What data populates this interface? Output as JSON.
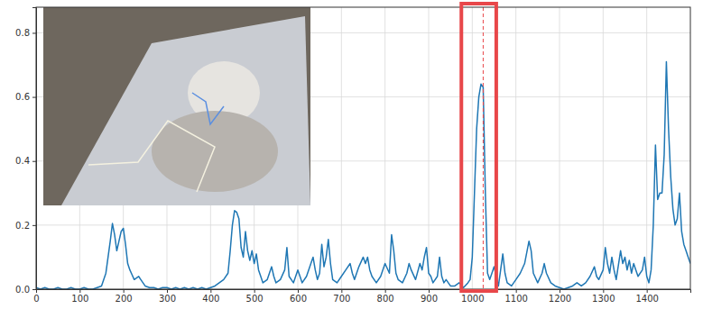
{
  "chart_data": {
    "type": "line",
    "color": "#1f77b4",
    "grid": true,
    "xlim": [
      0,
      1500
    ],
    "xticks": [
      0,
      100,
      200,
      300,
      400,
      500,
      600,
      700,
      800,
      900,
      1000,
      1100,
      1200,
      1300,
      1400
    ],
    "ylim": [
      0,
      0.88
    ],
    "yticks": [
      {
        "value": 0,
        "label": "0.0"
      },
      0.2,
      0.4,
      0.6,
      0.8
    ],
    "highlight_span": [
      975,
      1055
    ],
    "peak_x": 1025,
    "x": [
      0,
      10,
      20,
      30,
      40,
      50,
      60,
      70,
      80,
      90,
      100,
      110,
      120,
      130,
      140,
      150,
      160,
      170,
      175,
      180,
      185,
      190,
      195,
      200,
      205,
      210,
      215,
      220,
      225,
      230,
      235,
      240,
      250,
      260,
      270,
      280,
      290,
      300,
      310,
      320,
      330,
      340,
      350,
      360,
      370,
      380,
      390,
      400,
      410,
      420,
      430,
      440,
      445,
      450,
      455,
      460,
      465,
      470,
      475,
      480,
      485,
      490,
      495,
      500,
      505,
      510,
      515,
      520,
      530,
      540,
      545,
      550,
      560,
      570,
      575,
      580,
      590,
      600,
      605,
      610,
      620,
      630,
      635,
      640,
      645,
      650,
      655,
      660,
      665,
      670,
      675,
      680,
      690,
      700,
      710,
      720,
      725,
      730,
      740,
      750,
      755,
      760,
      765,
      770,
      780,
      790,
      800,
      810,
      815,
      820,
      825,
      830,
      840,
      850,
      855,
      860,
      870,
      880,
      885,
      890,
      895,
      900,
      905,
      910,
      920,
      925,
      930,
      935,
      940,
      950,
      960,
      970,
      980,
      990,
      995,
      1000,
      1005,
      1010,
      1015,
      1020,
      1025,
      1030,
      1035,
      1040,
      1045,
      1050,
      1055,
      1060,
      1065,
      1070,
      1075,
      1080,
      1090,
      1100,
      1110,
      1120,
      1130,
      1135,
      1140,
      1150,
      1160,
      1165,
      1170,
      1180,
      1190,
      1200,
      1210,
      1220,
      1230,
      1240,
      1250,
      1260,
      1270,
      1280,
      1285,
      1290,
      1300,
      1305,
      1310,
      1315,
      1320,
      1325,
      1330,
      1340,
      1345,
      1350,
      1355,
      1360,
      1365,
      1370,
      1375,
      1380,
      1390,
      1395,
      1400,
      1405,
      1410,
      1415,
      1420,
      1425,
      1430,
      1435,
      1440,
      1445,
      1450,
      1455,
      1460,
      1465,
      1470,
      1475,
      1480,
      1485,
      1490,
      1495,
      1500
    ],
    "values": [
      0.005,
      0.0,
      0.005,
      0.0,
      0.0,
      0.005,
      0.0,
      0.0,
      0.005,
      0.0,
      0.0,
      0.005,
      0.0,
      0.0,
      0.005,
      0.01,
      0.05,
      0.15,
      0.205,
      0.17,
      0.12,
      0.15,
      0.18,
      0.19,
      0.14,
      0.08,
      0.06,
      0.045,
      0.03,
      0.035,
      0.04,
      0.03,
      0.01,
      0.005,
      0.005,
      0.0,
      0.005,
      0.005,
      0.0,
      0.005,
      0.0,
      0.005,
      0.0,
      0.005,
      0.0,
      0.005,
      0.0,
      0.005,
      0.01,
      0.02,
      0.03,
      0.05,
      0.12,
      0.2,
      0.245,
      0.24,
      0.22,
      0.13,
      0.1,
      0.18,
      0.12,
      0.09,
      0.12,
      0.08,
      0.11,
      0.06,
      0.04,
      0.02,
      0.03,
      0.07,
      0.04,
      0.02,
      0.03,
      0.06,
      0.13,
      0.04,
      0.02,
      0.06,
      0.04,
      0.02,
      0.04,
      0.08,
      0.1,
      0.06,
      0.03,
      0.05,
      0.14,
      0.07,
      0.1,
      0.155,
      0.08,
      0.03,
      0.02,
      0.04,
      0.06,
      0.08,
      0.05,
      0.03,
      0.07,
      0.1,
      0.08,
      0.1,
      0.06,
      0.04,
      0.02,
      0.04,
      0.08,
      0.05,
      0.17,
      0.12,
      0.05,
      0.03,
      0.02,
      0.05,
      0.08,
      0.06,
      0.03,
      0.08,
      0.06,
      0.1,
      0.13,
      0.05,
      0.04,
      0.02,
      0.04,
      0.1,
      0.04,
      0.02,
      0.03,
      0.01,
      0.01,
      0.02,
      0.005,
      0.02,
      0.03,
      0.1,
      0.3,
      0.5,
      0.6,
      0.64,
      0.63,
      0.3,
      0.05,
      0.03,
      0.05,
      0.07,
      0.04,
      0.01,
      0.06,
      0.11,
      0.05,
      0.02,
      0.01,
      0.03,
      0.05,
      0.08,
      0.15,
      0.12,
      0.05,
      0.02,
      0.05,
      0.08,
      0.05,
      0.02,
      0.01,
      0.005,
      0.0,
      0.005,
      0.01,
      0.02,
      0.01,
      0.02,
      0.04,
      0.07,
      0.04,
      0.03,
      0.06,
      0.13,
      0.08,
      0.05,
      0.1,
      0.06,
      0.03,
      0.12,
      0.08,
      0.1,
      0.06,
      0.09,
      0.05,
      0.08,
      0.06,
      0.04,
      0.06,
      0.1,
      0.04,
      0.02,
      0.06,
      0.2,
      0.45,
      0.28,
      0.3,
      0.3,
      0.42,
      0.71,
      0.5,
      0.35,
      0.25,
      0.2,
      0.22,
      0.3,
      0.18,
      0.14,
      0.12,
      0.1,
      0.08
    ]
  }
}
